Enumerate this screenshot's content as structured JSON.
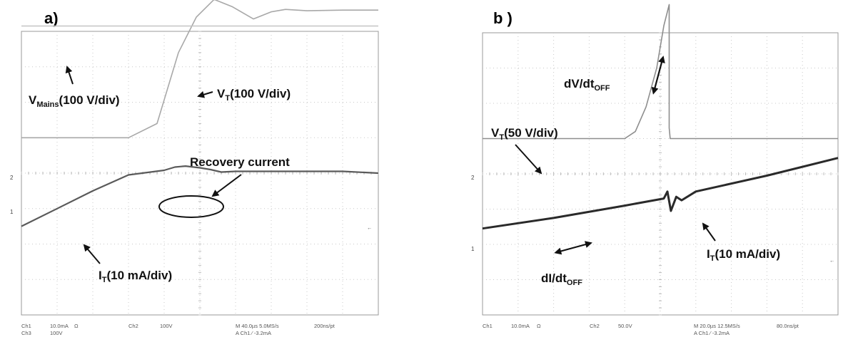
{
  "chart_data": [
    {
      "panel": "a)",
      "type": "line",
      "grid": true,
      "x_div": 10,
      "y_div": 8,
      "series": [
        {
          "color": "#a8a8a8",
          "x": [
            0,
            3,
            3.8,
            4.4,
            4.9,
            5.4,
            5.9,
            6.5,
            7,
            7.4,
            8,
            9,
            10
          ],
          "y": [
            1,
            1,
            1.4,
            3.4,
            4.4,
            4.9,
            4.7,
            4.35,
            4.55,
            4.62,
            4.58,
            4.6,
            4.6
          ]
        },
        {
          "color": "#5a5a5a",
          "x": [
            0,
            1,
            2,
            3,
            4,
            4.3,
            4.6,
            5,
            5.3,
            5.6,
            6,
            7,
            8,
            9,
            10
          ],
          "y": [
            -1.5,
            -1.0,
            -0.5,
            -0.05,
            0.08,
            0.17,
            0.2,
            0.15,
            0.1,
            0.03,
            0.05,
            0.05,
            0.05,
            0.05,
            0.0
          ]
        },
        {
          "color": "#c4c4c4",
          "x": [
            0,
            10
          ],
          "y": [
            4.15,
            4.15
          ]
        }
      ],
      "annotations": [
        {
          "main": "V",
          "sub": "Mains",
          "rest": "(100 V/div)"
        },
        {
          "main": "V",
          "sub": "T",
          "rest": "(100 V/div)"
        },
        {
          "main": "Recovery current",
          "sub": "",
          "rest": ""
        },
        {
          "main": "I",
          "sub": "T",
          "rest": "(10 mA/div)"
        }
      ],
      "channel_markers": [
        "2",
        "1"
      ],
      "status_lines": [
        [
          "Ch1",
          "10.0mA",
          "Ω",
          "Ch2",
          "100V",
          "M 40.0µs 5.0MS/s",
          "200ns/pt"
        ],
        [
          "Ch3",
          "100V",
          "A Ch1 ∕ -3.2mA"
        ]
      ]
    },
    {
      "panel": "b )",
      "type": "line",
      "grid": true,
      "x_div": 10,
      "y_div": 8,
      "series": [
        {
          "color": "#8e8e8e",
          "x": [
            0,
            4,
            4.3,
            4.6,
            4.9,
            5.1,
            5.25,
            5.25,
            5.28,
            10
          ],
          "y": [
            1,
            1,
            1.2,
            1.9,
            3.0,
            4.2,
            4.8,
            1.3,
            1,
            1
          ]
        },
        {
          "color": "#2a2a2a",
          "x": [
            0,
            2,
            4,
            5.1,
            5.2,
            5.3,
            5.45,
            5.6,
            6,
            8,
            10
          ],
          "y": [
            -1.55,
            -1.25,
            -0.9,
            -0.7,
            -0.5,
            -1.05,
            -0.65,
            -0.75,
            -0.5,
            -0.05,
            0.45
          ]
        }
      ],
      "annotations": [
        {
          "main": "dV/dt",
          "sub": "OFF",
          "rest": ""
        },
        {
          "main": "V",
          "sub": "T",
          "rest": "(50 V/div)"
        },
        {
          "main": "I",
          "sub": "T",
          "rest": "(10 mA/div)"
        },
        {
          "main": "dI/dt",
          "sub": "OFF",
          "rest": ""
        }
      ],
      "channel_markers": [
        "2",
        "1"
      ],
      "status_lines": [
        [
          "Ch1",
          "10.0mA",
          "Ω",
          "Ch2",
          "50.0V",
          "M 20.0µs 12.5MS/s",
          "80.0ns/pt"
        ],
        [
          "A Ch1 ∕ -3.2mA"
        ]
      ]
    }
  ]
}
